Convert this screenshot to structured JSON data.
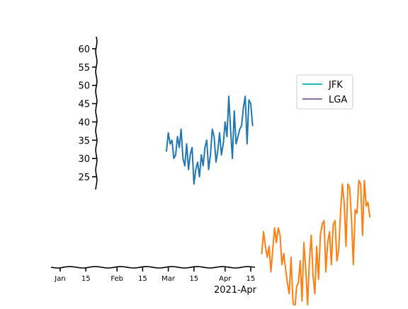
{
  "chart_data": {
    "type": "line",
    "title": "",
    "xlabel": "",
    "ylabel": "",
    "x_axis": {
      "type": "date",
      "range": [
        "2020-12-31",
        "2021-04-18"
      ],
      "ticks": [
        {
          "date": "2021-01-01",
          "label": "Jan"
        },
        {
          "date": "2021-01-15",
          "label": "15"
        },
        {
          "date": "2021-02-01",
          "label": "Feb"
        },
        {
          "date": "2021-02-15",
          "label": "15"
        },
        {
          "date": "2021-03-01",
          "label": "Mar"
        },
        {
          "date": "2021-03-15",
          "label": "15"
        },
        {
          "date": "2021-04-01",
          "label": "Apr"
        },
        {
          "date": "2021-04-15",
          "label": "15"
        }
      ],
      "offset_label": "2021-Apr"
    },
    "y_axis": {
      "range": [
        21.5,
        63
      ],
      "ticks": [
        25,
        30,
        35,
        40,
        45,
        50,
        55,
        60
      ]
    },
    "legend": {
      "placement": "right",
      "entries": [
        {
          "label": "JFK",
          "color": "#17becf"
        },
        {
          "label": "LGA",
          "color": "#9467bd"
        }
      ]
    },
    "grid": false,
    "series": [
      {
        "color": "#1f77b4",
        "dates": [
          "2021-02-28",
          "2021-03-01",
          "2021-03-02",
          "2021-03-03",
          "2021-03-04",
          "2021-03-05",
          "2021-03-06",
          "2021-03-07",
          "2021-03-08",
          "2021-03-09",
          "2021-03-10",
          "2021-03-11",
          "2021-03-12",
          "2021-03-13",
          "2021-03-14",
          "2021-03-15",
          "2021-03-16",
          "2021-03-17",
          "2021-03-18",
          "2021-03-19",
          "2021-03-20",
          "2021-03-21",
          "2021-03-22",
          "2021-03-23",
          "2021-03-24",
          "2021-03-25",
          "2021-03-26",
          "2021-03-27",
          "2021-03-28",
          "2021-03-29",
          "2021-03-30",
          "2021-03-31",
          "2021-04-01",
          "2021-04-02",
          "2021-04-03",
          "2021-04-04",
          "2021-04-05",
          "2021-04-06",
          "2021-04-07",
          "2021-04-08",
          "2021-04-09",
          "2021-04-10",
          "2021-04-11",
          "2021-04-12",
          "2021-04-13",
          "2021-04-14",
          "2021-04-15",
          "2021-04-16"
        ],
        "values": [
          32,
          37,
          34,
          35,
          30,
          31,
          36,
          33,
          38,
          30,
          28,
          34,
          27,
          31,
          33,
          23,
          27,
          29,
          25,
          31,
          28,
          33,
          35,
          27,
          31,
          38,
          36,
          29,
          32,
          37,
          31,
          34,
          40,
          36,
          47,
          38,
          30,
          43,
          34,
          36,
          38,
          39,
          44,
          47,
          34,
          46,
          45,
          39
        ]
      },
      {
        "color": "#ff7f0e",
        "dates": [
          "2021-04-21",
          "2021-04-22",
          "2021-04-23",
          "2021-04-24",
          "2021-04-25",
          "2021-04-26",
          "2021-04-27",
          "2021-04-28",
          "2021-04-29",
          "2021-04-30",
          "2021-05-01",
          "2021-05-02",
          "2021-05-03",
          "2021-05-04",
          "2021-05-05",
          "2021-05-06",
          "2021-05-07",
          "2021-05-08",
          "2021-05-09",
          "2021-05-10",
          "2021-05-11",
          "2021-05-12",
          "2021-05-13",
          "2021-05-14",
          "2021-05-15",
          "2021-05-16",
          "2021-05-17",
          "2021-05-18",
          "2021-05-19",
          "2021-05-20",
          "2021-05-21",
          "2021-05-22",
          "2021-05-23",
          "2021-05-24",
          "2021-05-25",
          "2021-05-26",
          "2021-05-27",
          "2021-05-28",
          "2021-05-29",
          "2021-05-30",
          "2021-05-31",
          "2021-06-01",
          "2021-06-02",
          "2021-06-03",
          "2021-06-04",
          "2021-06-05",
          "2021-06-06",
          "2021-06-07",
          "2021-06-08",
          "2021-06-09",
          "2021-06-10",
          "2021-06-11",
          "2021-06-12",
          "2021-06-13",
          "2021-06-14",
          "2021-06-15",
          "2021-06-16",
          "2021-06-17",
          "2021-06-18",
          "2021-06-19"
        ],
        "values": [
          4,
          10,
          6,
          3,
          6,
          -1,
          5,
          11,
          7,
          11,
          9,
          1,
          4,
          0,
          -4,
          -7,
          3,
          -9,
          -12,
          -5,
          -4,
          2,
          -9,
          7,
          0,
          -10,
          2,
          9,
          -2,
          -7,
          6,
          -3,
          9,
          12,
          13,
          -1,
          7,
          10,
          1,
          12,
          13,
          2,
          5,
          15,
          23,
          18,
          6,
          23,
          22,
          13,
          1,
          16,
          15,
          24,
          23,
          9,
          24,
          17,
          18,
          14
        ]
      }
    ]
  }
}
